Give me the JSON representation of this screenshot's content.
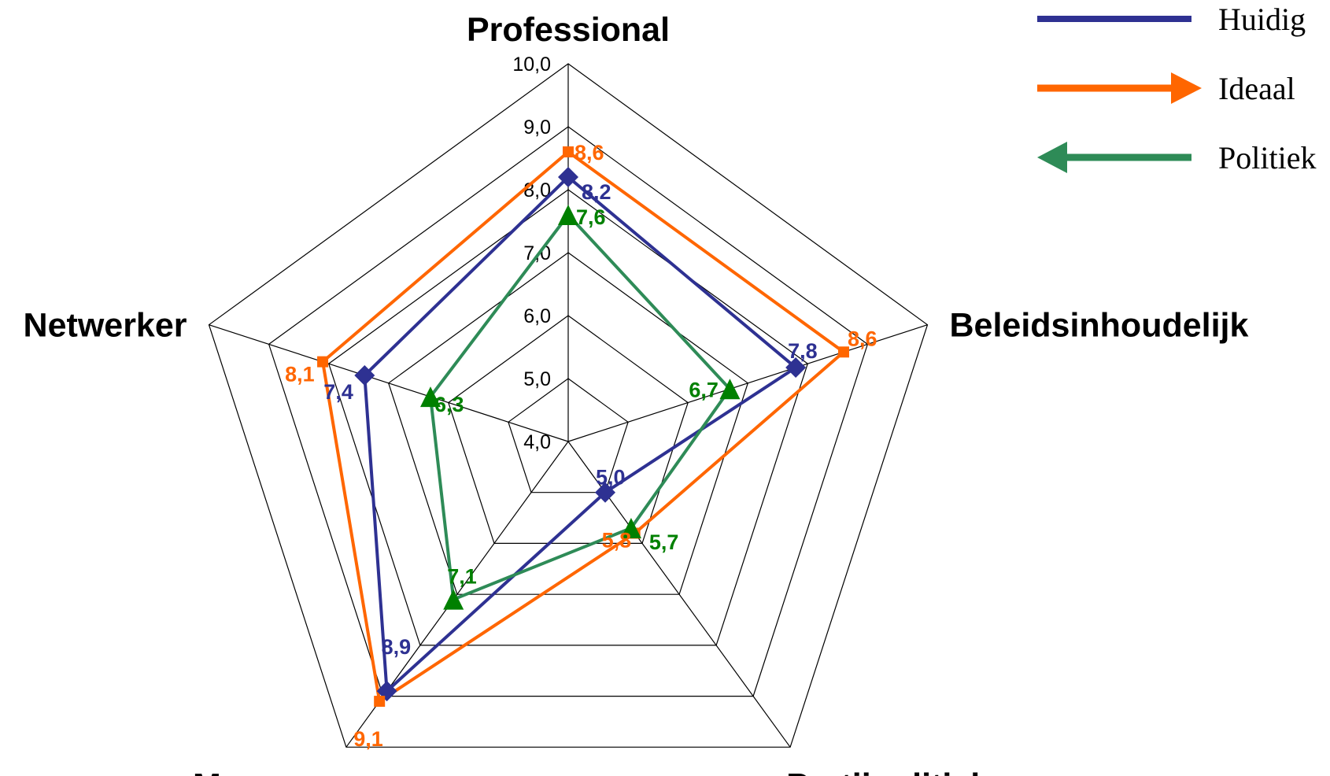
{
  "chart_data": {
    "type": "radar",
    "axes": [
      "Professional",
      "Beleidsinhoudelijk",
      "Partijpolitiek",
      "Manager",
      "Netwerker"
    ],
    "rlim": [
      4.0,
      10.0
    ],
    "ticks": [
      "4,0",
      "5,0",
      "6,0",
      "7,0",
      "8,0",
      "9,0",
      "10,0"
    ],
    "tick_values": [
      4,
      5,
      6,
      7,
      8,
      9,
      10
    ],
    "grid": true,
    "legend_position": "top-right",
    "series": [
      {
        "name": "Huidig",
        "color": "#2e3192",
        "marker": "diamond",
        "values": [
          8.2,
          7.8,
          5.0,
          8.9,
          7.4
        ],
        "labels": [
          "8,2",
          "7,8",
          "5,0",
          "8,9",
          "7,4"
        ]
      },
      {
        "name": "Ideaal",
        "color": "#ff6600",
        "marker": "square",
        "values": [
          8.6,
          8.6,
          5.8,
          9.1,
          8.1
        ],
        "labels": [
          "8,6",
          "8,6",
          "5,8",
          "9,1",
          "8,1"
        ]
      },
      {
        "name": "Politiek",
        "color": "#2e8b57",
        "label_color": "#008000",
        "marker": "triangle",
        "values": [
          7.6,
          6.7,
          5.7,
          7.1,
          6.3
        ],
        "labels": [
          "7,6",
          "6,7",
          "5,7",
          "7,1",
          "6,3"
        ]
      }
    ]
  }
}
